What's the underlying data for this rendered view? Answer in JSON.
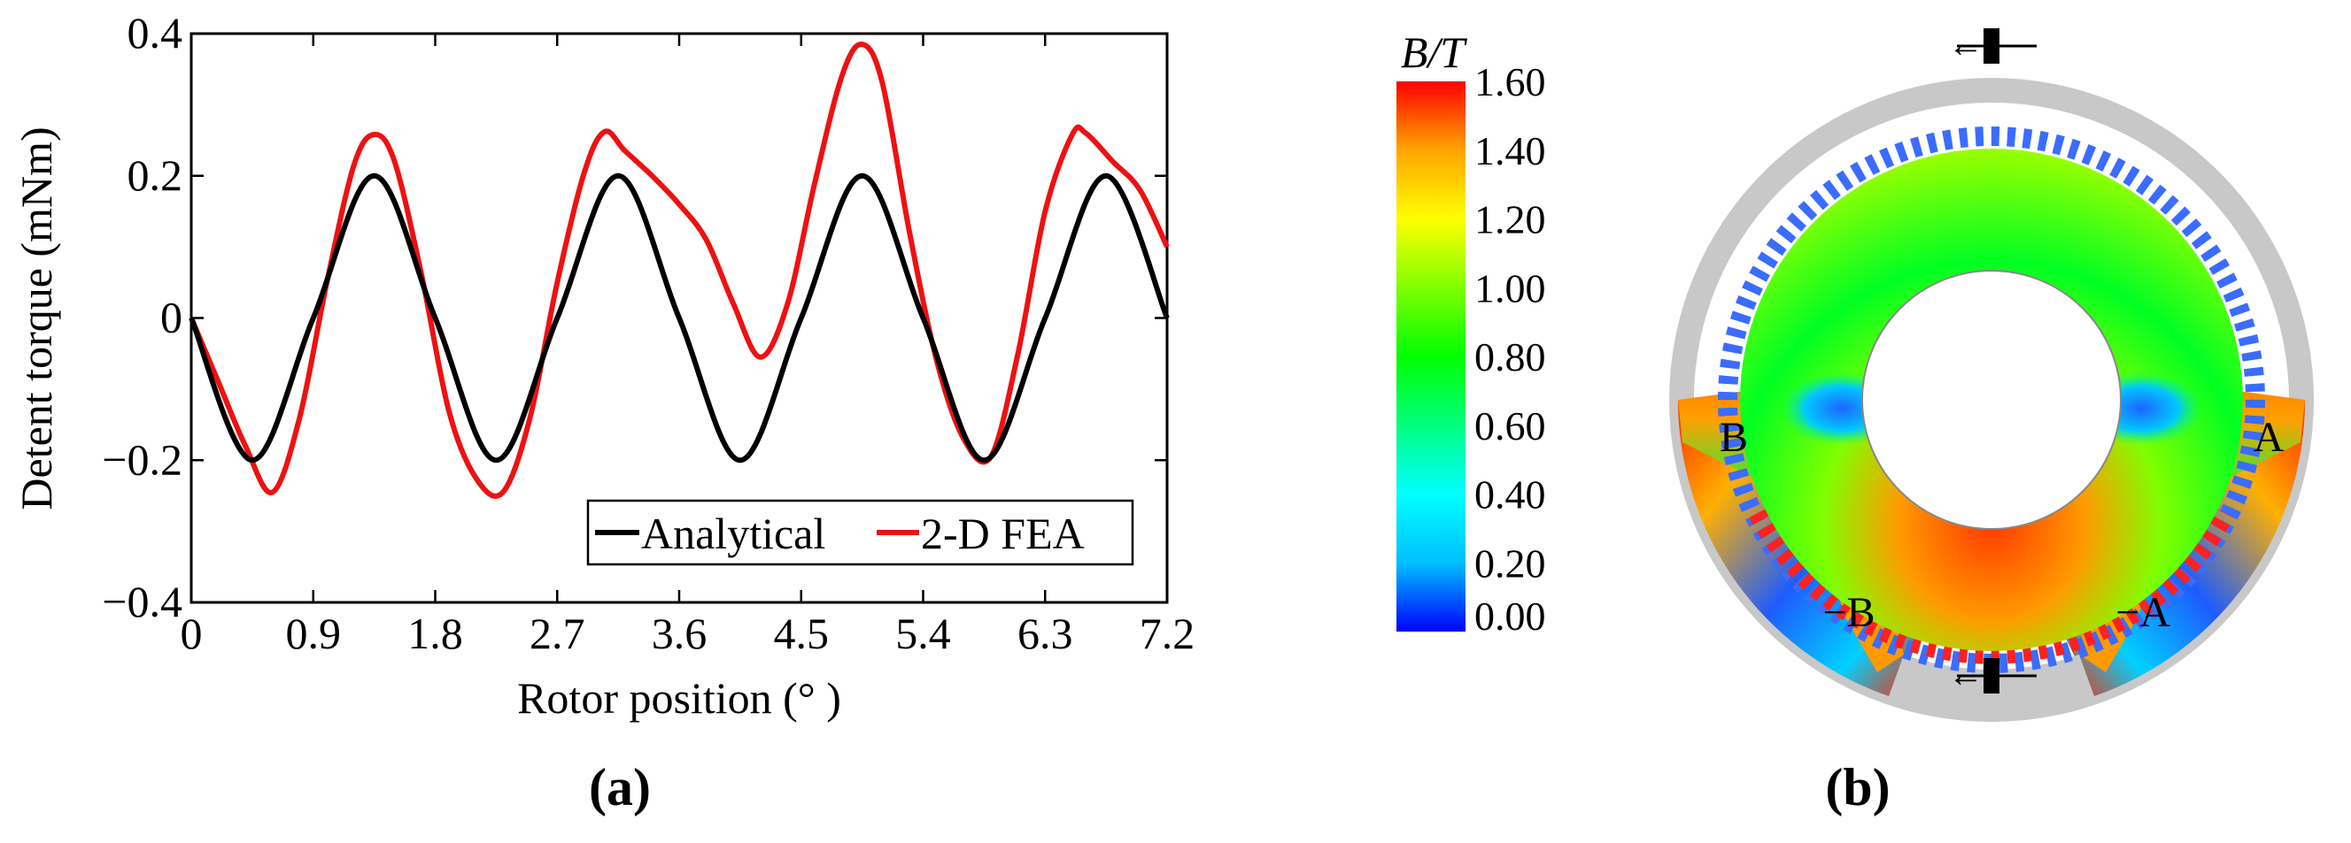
{
  "chart_data": [
    {
      "type": "line",
      "panel_label": "(a)",
      "xlabel": "Rotor position (° )",
      "ylabel": "Detent torque (mNm)",
      "xlim": [
        0,
        7.2
      ],
      "ylim": [
        -0.4,
        0.4
      ],
      "xticks": [
        0,
        0.9,
        1.8,
        2.7,
        3.6,
        4.5,
        5.4,
        6.3,
        7.2
      ],
      "xtick_labels": [
        "0",
        "0.9",
        "1.8",
        "2.7",
        "3.6",
        "4.5",
        "5.4",
        "6.3",
        "7.2"
      ],
      "yticks": [
        -0.4,
        -0.2,
        0,
        0.2,
        0.4
      ],
      "ytick_labels": [
        "−0.4",
        "−0.2",
        "0",
        "0.2",
        "0.4"
      ],
      "legend_position": "bottom-right",
      "series": [
        {
          "name": "Analytical",
          "color": "#000000",
          "x": [
            0,
            0.45,
            0.9,
            1.35,
            1.8,
            2.25,
            2.7,
            3.15,
            3.6,
            4.05,
            4.5,
            4.95,
            5.4,
            5.85,
            6.3,
            6.75,
            7.2
          ],
          "y": [
            0,
            -0.2,
            0,
            0.2,
            0,
            -0.2,
            0,
            0.2,
            0,
            -0.2,
            0,
            0.2,
            0,
            -0.2,
            0,
            0.2,
            0
          ]
        },
        {
          "name": "2-D FEA",
          "color": "#ee1111",
          "x": [
            0,
            0.2,
            0.4,
            0.6,
            0.8,
            1.0,
            1.2,
            1.35,
            1.5,
            1.7,
            1.9,
            2.1,
            2.3,
            2.5,
            2.7,
            2.9,
            3.05,
            3.2,
            3.4,
            3.6,
            3.8,
            4.0,
            4.2,
            4.4,
            4.6,
            4.8,
            4.95,
            5.1,
            5.3,
            5.5,
            5.7,
            5.9,
            6.1,
            6.3,
            6.5,
            6.6,
            6.8,
            7.0,
            7.2
          ],
          "y": [
            0,
            -0.09,
            -0.18,
            -0.245,
            -0.14,
            0.05,
            0.215,
            0.258,
            0.22,
            0.06,
            -0.13,
            -0.225,
            -0.245,
            -0.14,
            0.05,
            0.205,
            0.262,
            0.235,
            0.2,
            0.16,
            0.11,
            0.02,
            -0.055,
            0.02,
            0.19,
            0.34,
            0.385,
            0.33,
            0.12,
            -0.06,
            -0.17,
            -0.195,
            -0.05,
            0.15,
            0.258,
            0.26,
            0.22,
            0.18,
            0.1
          ]
        }
      ]
    },
    {
      "type": "heatmap",
      "panel_label": "(b)",
      "colorbar_title": "B/T",
      "colorbar_range": [
        0,
        1.6
      ],
      "colorbar_ticks": [
        "1.60",
        "1.40",
        "1.20",
        "1.00",
        "0.80",
        "0.60",
        "0.40",
        "0.20",
        "0.00"
      ],
      "colormap": [
        "#0000ff",
        "#00bfff",
        "#00ffff",
        "#00ff7f",
        "#00ff00",
        "#7fff00",
        "#ffff00",
        "#ffa500",
        "#ff0000"
      ],
      "pole_labels": [
        "A",
        "B",
        "−B",
        "−A"
      ]
    }
  ]
}
